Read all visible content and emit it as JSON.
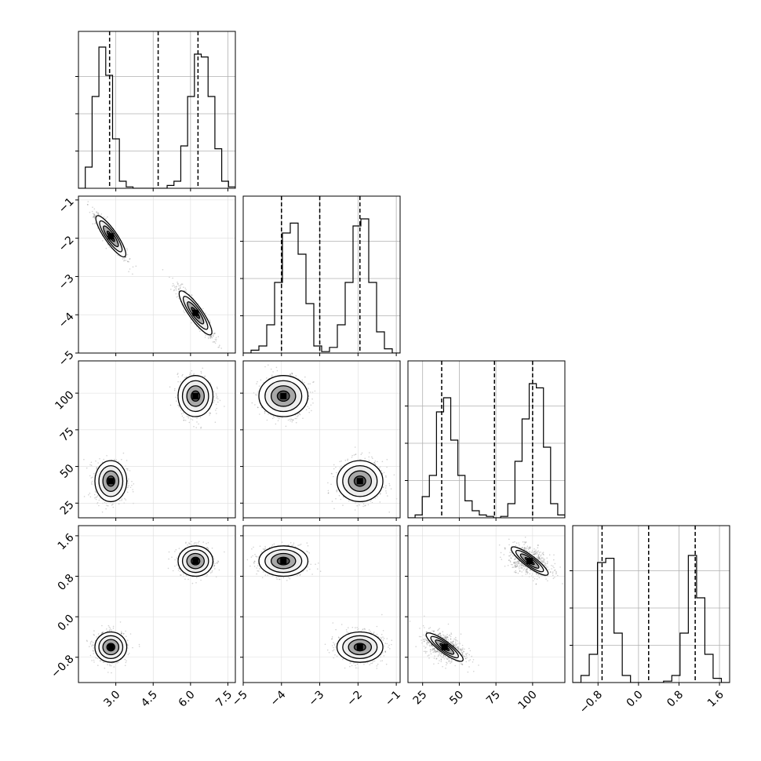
{
  "chart_data": {
    "type": "corner",
    "n_params": 4,
    "grid": true,
    "params": [
      {
        "range": [
          1.5,
          7.8
        ],
        "ticks": [
          3.0,
          4.5,
          6.0,
          7.5
        ],
        "tick_labels": [
          "3.0",
          "4.5",
          "6.0",
          "7.5"
        ],
        "quantiles": [
          2.75,
          4.7,
          6.3
        ],
        "hist": [
          0.0,
          0.15,
          0.65,
          1.0,
          0.8,
          0.35,
          0.05,
          0.01,
          0.0,
          0.0,
          0.0,
          0.0,
          0.0,
          0.02,
          0.05,
          0.3,
          0.65,
          0.95,
          0.93,
          0.65,
          0.28,
          0.05,
          0.01
        ]
      },
      {
        "range": [
          -5,
          -0.9
        ],
        "ticks": [
          -5,
          -4,
          -3,
          -2,
          -1
        ],
        "tick_labels": [
          "−5",
          "−4",
          "−3",
          "−2",
          "−1"
        ],
        "quantiles": [
          -4.0,
          -3.0,
          -1.95
        ],
        "hist": [
          0.0,
          0.02,
          0.05,
          0.2,
          0.5,
          0.85,
          0.92,
          0.7,
          0.35,
          0.05,
          0.01,
          0.04,
          0.2,
          0.5,
          0.9,
          0.95,
          0.5,
          0.15,
          0.03,
          0.0
        ]
      },
      {
        "range": [
          15,
          122
        ],
        "ticks": [
          25,
          50,
          75,
          100
        ],
        "tick_labels": [
          "25",
          "50",
          "75",
          "100"
        ],
        "quantiles": [
          38,
          74,
          100
        ],
        "hist": [
          0.0,
          0.02,
          0.15,
          0.3,
          0.75,
          0.85,
          0.55,
          0.3,
          0.12,
          0.05,
          0.02,
          0.01,
          0.0,
          0.01,
          0.1,
          0.4,
          0.7,
          0.95,
          0.92,
          0.5,
          0.1,
          0.02
        ]
      },
      {
        "range": [
          -1.3,
          1.8
        ],
        "ticks": [
          -0.8,
          0.0,
          0.8,
          1.6
        ],
        "tick_labels": [
          "−0.8",
          "0.0",
          "0.8",
          "1.6"
        ],
        "quantiles": [
          -0.72,
          0.2,
          1.12
        ],
        "hist": [
          0.0,
          0.05,
          0.2,
          0.85,
          0.88,
          0.35,
          0.05,
          0.0,
          0.0,
          0.0,
          0.0,
          0.01,
          0.05,
          0.35,
          0.9,
          0.6,
          0.2,
          0.03,
          0.0
        ]
      }
    ],
    "modes": [
      {
        "center": [
          2.8,
          -1.95,
          40,
          -0.6
        ],
        "sd": [
          0.32,
          0.3,
          7,
          0.15
        ]
      },
      {
        "center": [
          6.2,
          -3.95,
          98,
          1.1
        ],
        "sd": [
          0.35,
          0.32,
          7,
          0.15
        ]
      }
    ]
  }
}
